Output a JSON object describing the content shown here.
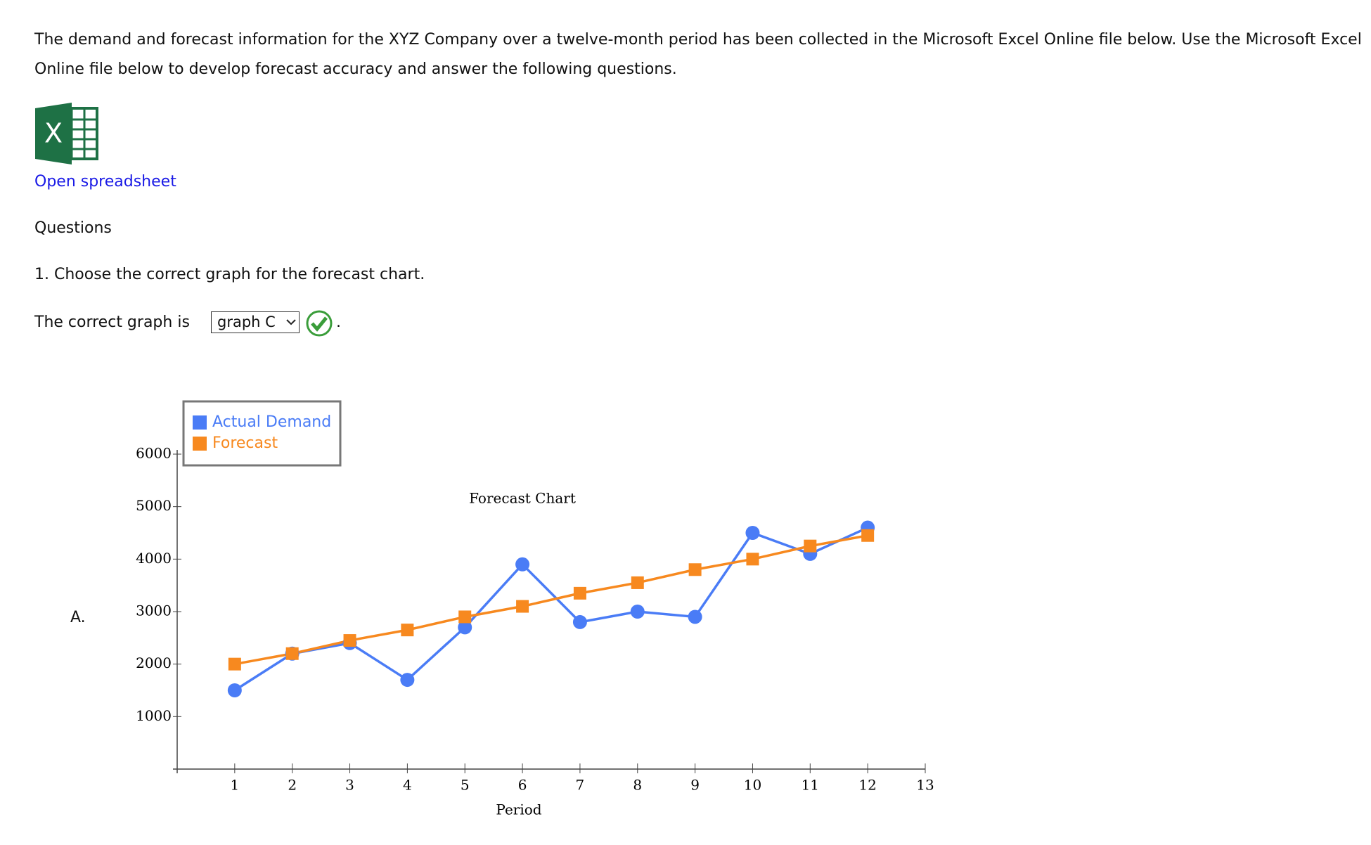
{
  "intro": "The demand and forecast information for the XYZ Company over a twelve-month period has been collected in the Microsoft Excel Online file below. Use the Microsoft Excel Online file below to develop forecast accuracy and answer the following questions.",
  "link": "Open spreadsheet",
  "questions_heading": "Questions",
  "question": "1. Choose the correct graph for the forecast chart.",
  "answer_prefix": "The correct graph is",
  "answer_selected": "graph C",
  "answer_suffix": ".",
  "option_label": "A.",
  "chart_data": {
    "type": "line",
    "title": "Forecast Chart",
    "x_label": "Period",
    "x": [
      1,
      2,
      3,
      4,
      5,
      6,
      7,
      8,
      9,
      10,
      11,
      12
    ],
    "series": [
      {
        "name": "Actual Demand",
        "color": "#4a7cf6",
        "marker": "circle",
        "values": [
          1500,
          2200,
          2400,
          1700,
          2700,
          3900,
          2800,
          3000,
          2900,
          4500,
          4100,
          4600
        ]
      },
      {
        "name": "Forecast",
        "color": "#f7891f",
        "marker": "square",
        "values": [
          2000,
          2200,
          2450,
          2650,
          2900,
          3100,
          3350,
          3550,
          3800,
          4000,
          4250,
          4450
        ]
      }
    ],
    "xlim": [
      0,
      13
    ],
    "ylim": [
      0,
      6000
    ],
    "xticks": [
      1,
      2,
      3,
      4,
      5,
      6,
      7,
      8,
      9,
      10,
      11,
      12,
      13
    ],
    "yticks": [
      1000,
      2000,
      3000,
      4000,
      5000,
      6000
    ]
  }
}
